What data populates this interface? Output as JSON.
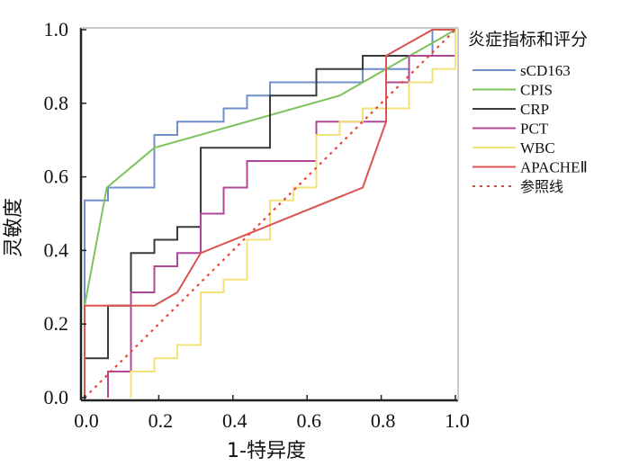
{
  "chart_data": {
    "type": "line",
    "title": "",
    "xlabel": "1-特异度",
    "ylabel": "灵敏度",
    "xlim": [
      0,
      1
    ],
    "ylim": [
      0,
      1
    ],
    "xticks": [
      "0.0",
      "0.2",
      "0.4",
      "0.6",
      "0.8",
      "1.0"
    ],
    "yticks": [
      "0.0",
      "0.2",
      "0.4",
      "0.6",
      "0.8",
      "1.0"
    ],
    "legend_title": "炎症指标和评分",
    "legend_position": "right",
    "series": [
      {
        "name": "sCD163",
        "color": "#6f8fc8",
        "style": "step",
        "points": [
          [
            0,
            0
          ],
          [
            0,
            0.536
          ],
          [
            0.063,
            0.536
          ],
          [
            0.063,
            0.571
          ],
          [
            0.188,
            0.571
          ],
          [
            0.188,
            0.714
          ],
          [
            0.25,
            0.714
          ],
          [
            0.25,
            0.75
          ],
          [
            0.375,
            0.75
          ],
          [
            0.375,
            0.786
          ],
          [
            0.438,
            0.786
          ],
          [
            0.438,
            0.821
          ],
          [
            0.5,
            0.821
          ],
          [
            0.5,
            0.857
          ],
          [
            0.75,
            0.857
          ],
          [
            0.75,
            0.893
          ],
          [
            0.875,
            0.893
          ],
          [
            0.875,
            0.929
          ],
          [
            0.938,
            0.929
          ],
          [
            0.938,
            1.0
          ],
          [
            1.0,
            1.0
          ]
        ]
      },
      {
        "name": "CPIS",
        "color": "#7cc35c",
        "style": "line",
        "points": [
          [
            0,
            0
          ],
          [
            0,
            0.25
          ],
          [
            0.06,
            0.571
          ],
          [
            0.188,
            0.679
          ],
          [
            0.688,
            0.821
          ],
          [
            0.813,
            0.893
          ],
          [
            0.938,
            0.964
          ],
          [
            1.0,
            1.0
          ]
        ]
      },
      {
        "name": "CRP",
        "color": "#3b3b3b",
        "style": "step",
        "points": [
          [
            0,
            0
          ],
          [
            0,
            0.107
          ],
          [
            0.063,
            0.107
          ],
          [
            0.063,
            0.25
          ],
          [
            0.125,
            0.25
          ],
          [
            0.125,
            0.393
          ],
          [
            0.188,
            0.393
          ],
          [
            0.188,
            0.429
          ],
          [
            0.25,
            0.429
          ],
          [
            0.25,
            0.464
          ],
          [
            0.313,
            0.464
          ],
          [
            0.313,
            0.679
          ],
          [
            0.5,
            0.679
          ],
          [
            0.5,
            0.821
          ],
          [
            0.625,
            0.821
          ],
          [
            0.625,
            0.893
          ],
          [
            0.75,
            0.893
          ],
          [
            0.75,
            0.929
          ],
          [
            1.0,
            0.929
          ]
        ]
      },
      {
        "name": "PCT",
        "color": "#b0489a",
        "style": "step",
        "points": [
          [
            0.063,
            0
          ],
          [
            0.063,
            0.071
          ],
          [
            0.125,
            0.071
          ],
          [
            0.125,
            0.286
          ],
          [
            0.188,
            0.286
          ],
          [
            0.188,
            0.357
          ],
          [
            0.25,
            0.357
          ],
          [
            0.25,
            0.393
          ],
          [
            0.313,
            0.393
          ],
          [
            0.313,
            0.5
          ],
          [
            0.375,
            0.5
          ],
          [
            0.375,
            0.571
          ],
          [
            0.438,
            0.571
          ],
          [
            0.438,
            0.643
          ],
          [
            0.625,
            0.643
          ],
          [
            0.625,
            0.75
          ],
          [
            0.813,
            0.75
          ],
          [
            0.813,
            0.857
          ],
          [
            0.875,
            0.857
          ],
          [
            0.875,
            0.929
          ],
          [
            1.0,
            0.929
          ],
          [
            1.0,
            0.964
          ]
        ]
      },
      {
        "name": "WBC",
        "color": "#f2e27a",
        "style": "step",
        "points": [
          [
            0.125,
            0
          ],
          [
            0.125,
            0.071
          ],
          [
            0.188,
            0.071
          ],
          [
            0.188,
            0.107
          ],
          [
            0.25,
            0.107
          ],
          [
            0.25,
            0.143
          ],
          [
            0.313,
            0.143
          ],
          [
            0.313,
            0.286
          ],
          [
            0.375,
            0.286
          ],
          [
            0.375,
            0.321
          ],
          [
            0.438,
            0.321
          ],
          [
            0.438,
            0.429
          ],
          [
            0.5,
            0.429
          ],
          [
            0.5,
            0.536
          ],
          [
            0.563,
            0.536
          ],
          [
            0.563,
            0.571
          ],
          [
            0.625,
            0.571
          ],
          [
            0.625,
            0.714
          ],
          [
            0.688,
            0.714
          ],
          [
            0.688,
            0.75
          ],
          [
            0.75,
            0.75
          ],
          [
            0.75,
            0.786
          ],
          [
            0.875,
            0.786
          ],
          [
            0.875,
            0.857
          ],
          [
            0.938,
            0.857
          ],
          [
            0.938,
            0.893
          ],
          [
            1.0,
            0.893
          ],
          [
            1.0,
            1.0
          ]
        ]
      },
      {
        "name": "APACHEⅡ",
        "color": "#d9534f",
        "style": "line",
        "points": [
          [
            0,
            0
          ],
          [
            0,
            0.25
          ],
          [
            0.188,
            0.25
          ],
          [
            0.25,
            0.286
          ],
          [
            0.313,
            0.393
          ],
          [
            0.75,
            0.571
          ],
          [
            0.813,
            0.75
          ],
          [
            0.813,
            0.929
          ],
          [
            0.938,
            1.0
          ],
          [
            1.0,
            1.0
          ]
        ]
      },
      {
        "name": "参照线",
        "color": "#e8473a",
        "style": "dotted",
        "points": [
          [
            0,
            0
          ],
          [
            1,
            1
          ]
        ]
      }
    ]
  }
}
